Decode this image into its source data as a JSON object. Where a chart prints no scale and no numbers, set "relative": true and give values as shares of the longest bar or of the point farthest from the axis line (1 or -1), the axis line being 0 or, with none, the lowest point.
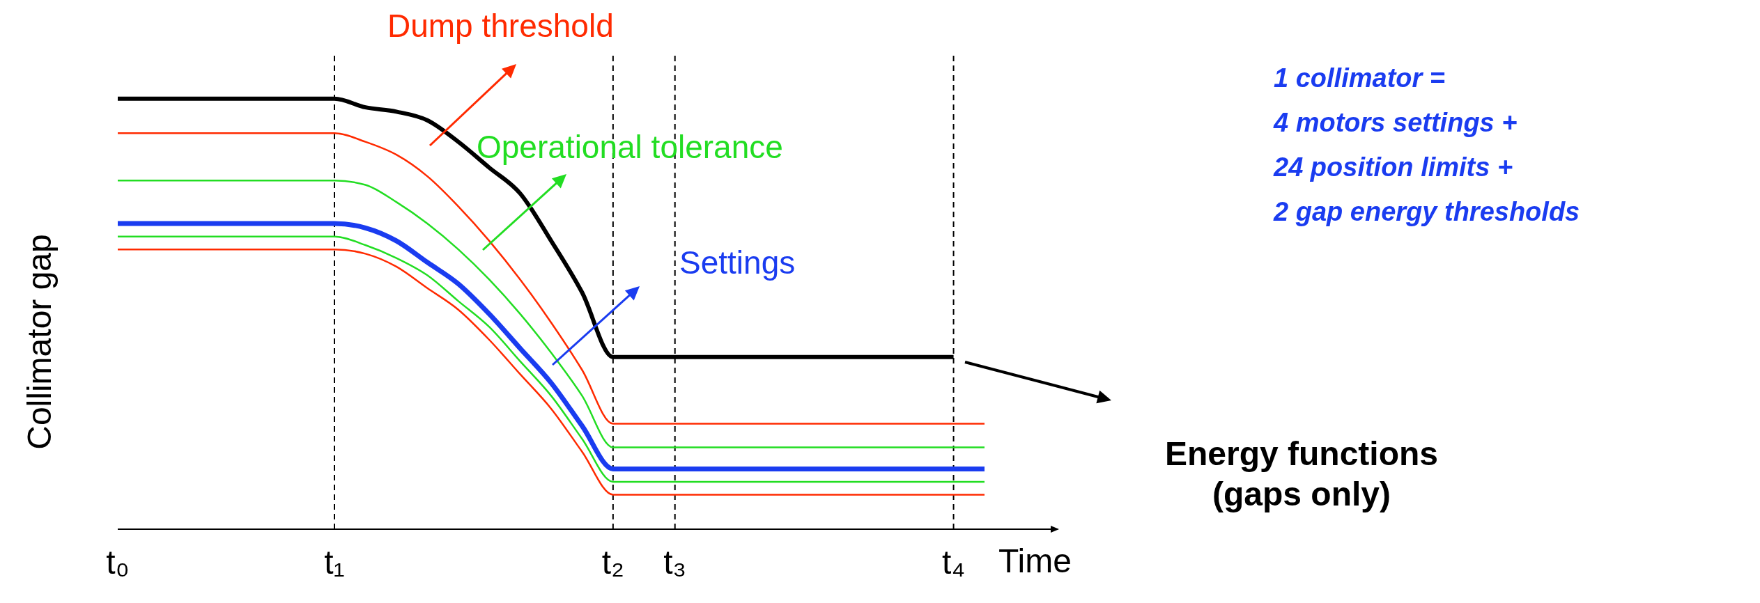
{
  "chart_data": {
    "type": "line",
    "relative": true,
    "xlabel": "Time",
    "ylabel": "Collimator gap",
    "categories": [
      "t₀",
      null,
      null,
      null,
      null,
      null,
      null,
      "t₁",
      null,
      null,
      null,
      null,
      null,
      null,
      null,
      null,
      "t₂",
      null,
      "t₃",
      null,
      null,
      null,
      null,
      null,
      null,
      null,
      null,
      "t₄",
      null
    ],
    "series": [
      {
        "name": "Energy functions (gaps only)",
        "color": "#000000",
        "values": [
          1,
          1,
          1,
          1,
          1,
          1,
          1,
          1,
          0.98,
          0.97,
          0.95,
          0.9,
          0.84,
          0.78,
          0.67,
          0.55,
          0.4,
          0.4,
          0.4,
          0.4,
          0.4,
          0.4,
          0.4,
          0.4,
          0.4,
          0.4,
          0.4,
          0.4,
          null
        ]
      },
      {
        "name": "Dump threshold",
        "color": "#ff2a00",
        "values": [
          0.92,
          0.92,
          0.92,
          0.92,
          0.92,
          0.92,
          0.92,
          0.92,
          0.9,
          0.87,
          0.82,
          0.75,
          0.67,
          0.58,
          0.48,
          0.37,
          0.245,
          0.245,
          0.245,
          0.245,
          0.245,
          0.245,
          0.245,
          0.245,
          0.245,
          0.245,
          0.245,
          0.245,
          0.245
        ]
      },
      {
        "name": "Operational tolerance",
        "color": "#22dd22",
        "values": [
          0.81,
          0.81,
          0.81,
          0.81,
          0.81,
          0.81,
          0.81,
          0.81,
          0.8,
          0.76,
          0.71,
          0.65,
          0.58,
          0.5,
          0.41,
          0.31,
          0.19,
          0.19,
          0.19,
          0.19,
          0.19,
          0.19,
          0.19,
          0.19,
          0.19,
          0.19,
          0.19,
          0.19,
          0.19
        ]
      },
      {
        "name": "Settings",
        "color": "#1a3cf0",
        "values": [
          0.71,
          0.71,
          0.71,
          0.71,
          0.71,
          0.71,
          0.71,
          0.71,
          0.7,
          0.67,
          0.62,
          0.57,
          0.5,
          0.42,
          0.34,
          0.24,
          0.14,
          0.14,
          0.14,
          0.14,
          0.14,
          0.14,
          0.14,
          0.14,
          0.14,
          0.14,
          0.14,
          0.14,
          0.14
        ]
      },
      {
        "color": "#22dd22",
        "values": [
          0.68,
          0.68,
          0.68,
          0.68,
          0.68,
          0.68,
          0.68,
          0.68,
          0.66,
          0.63,
          0.59,
          0.53,
          0.47,
          0.39,
          0.31,
          0.21,
          0.11,
          0.11,
          0.11,
          0.11,
          0.11,
          0.11,
          0.11,
          0.11,
          0.11,
          0.11,
          0.11,
          0.11,
          0.11
        ]
      },
      {
        "color": "#ff2a00",
        "values": [
          0.65,
          0.65,
          0.65,
          0.65,
          0.65,
          0.65,
          0.65,
          0.65,
          0.64,
          0.61,
          0.56,
          0.51,
          0.44,
          0.36,
          0.28,
          0.18,
          0.08,
          0.08,
          0.08,
          0.08,
          0.08,
          0.08,
          0.08,
          0.08,
          0.08,
          0.08,
          0.08,
          0.08,
          0.08
        ]
      }
    ],
    "ref_lines": [
      {
        "axis": "x",
        "value": "t₁",
        "color": "#000000",
        "line_style": "dashed"
      },
      {
        "axis": "x",
        "value": "t₂",
        "color": "#000000",
        "line_style": "dashed"
      },
      {
        "axis": "x",
        "value": "t₃",
        "color": "#000000",
        "line_style": "dashed"
      },
      {
        "axis": "x",
        "value": "t₄",
        "color": "#000000",
        "line_style": "dashed"
      }
    ],
    "annotations": [
      "1 collimator =",
      "4 motors settings +",
      "24 position limits +",
      "2 gap energy thresholds"
    ],
    "grid": false,
    "legend": false,
    "marker": "none"
  }
}
